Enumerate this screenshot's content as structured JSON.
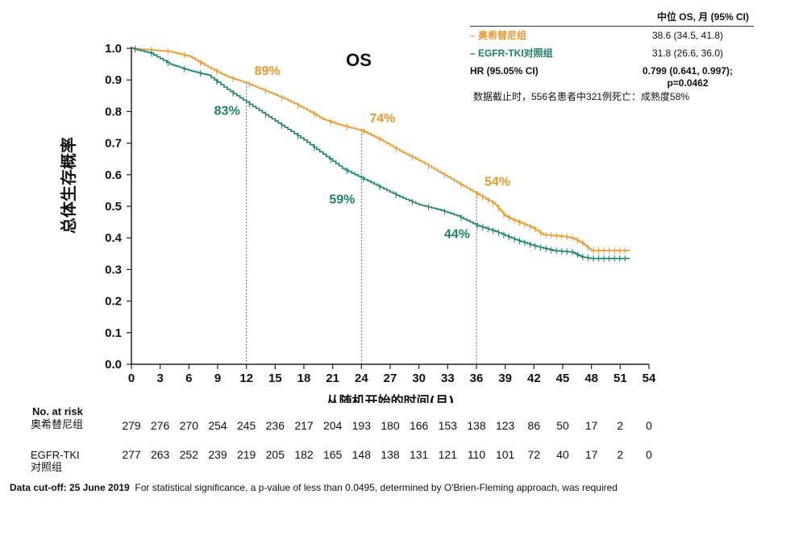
{
  "chart_data": {
    "type": "line",
    "subtype": "kaplan-meier",
    "title": "OS",
    "xlabel": "从随机开始的时间(月)",
    "ylabel": "总体生存概率",
    "xlim": [
      0,
      54
    ],
    "ylim": [
      0.0,
      1.0
    ],
    "xticks": [
      "0",
      "3",
      "6",
      "9",
      "12",
      "15",
      "18",
      "21",
      "24",
      "27",
      "30",
      "33",
      "36",
      "39",
      "42",
      "45",
      "48",
      "51",
      "54"
    ],
    "yticks": [
      "0.0",
      "0.1",
      "0.2",
      "0.3",
      "0.4",
      "0.5",
      "0.6",
      "0.7",
      "0.8",
      "0.9",
      "1.0"
    ],
    "reference_lines_x": [
      12,
      24,
      36
    ],
    "series": [
      {
        "name": "奥希替尼组",
        "color": "#e8992e",
        "points": [
          [
            0,
            1.0
          ],
          [
            2,
            0.995
          ],
          [
            4,
            0.99
          ],
          [
            6,
            0.975
          ],
          [
            8,
            0.94
          ],
          [
            10,
            0.91
          ],
          [
            12,
            0.89
          ],
          [
            14,
            0.865
          ],
          [
            16,
            0.84
          ],
          [
            18,
            0.81
          ],
          [
            20,
            0.775
          ],
          [
            22,
            0.755
          ],
          [
            24,
            0.74
          ],
          [
            26,
            0.71
          ],
          [
            28,
            0.675
          ],
          [
            30,
            0.645
          ],
          [
            32,
            0.61
          ],
          [
            34,
            0.575
          ],
          [
            36,
            0.54
          ],
          [
            38,
            0.505
          ],
          [
            39,
            0.47
          ],
          [
            40,
            0.455
          ],
          [
            42,
            0.43
          ],
          [
            43,
            0.41
          ],
          [
            45,
            0.405
          ],
          [
            46,
            0.4
          ],
          [
            47,
            0.385
          ],
          [
            48,
            0.36
          ],
          [
            52,
            0.36
          ]
        ],
        "labels": [
          {
            "x": 12,
            "text": "89%"
          },
          {
            "x": 24,
            "text": "74%"
          },
          {
            "x": 36,
            "text": "54%"
          }
        ]
      },
      {
        "name": "EGFR-TKI对照组",
        "color": "#1d7f6e",
        "points": [
          [
            0,
            1.0
          ],
          [
            2,
            0.985
          ],
          [
            4,
            0.95
          ],
          [
            6,
            0.93
          ],
          [
            8,
            0.915
          ],
          [
            10,
            0.87
          ],
          [
            12,
            0.83
          ],
          [
            14,
            0.79
          ],
          [
            16,
            0.75
          ],
          [
            18,
            0.71
          ],
          [
            20,
            0.665
          ],
          [
            22,
            0.62
          ],
          [
            24,
            0.59
          ],
          [
            26,
            0.56
          ],
          [
            28,
            0.53
          ],
          [
            30,
            0.505
          ],
          [
            32,
            0.49
          ],
          [
            34,
            0.47
          ],
          [
            36,
            0.44
          ],
          [
            38,
            0.42
          ],
          [
            40,
            0.395
          ],
          [
            42,
            0.375
          ],
          [
            44,
            0.36
          ],
          [
            46,
            0.355
          ],
          [
            47,
            0.34
          ],
          [
            48,
            0.335
          ],
          [
            52,
            0.335
          ]
        ],
        "labels": [
          {
            "x": 12,
            "text": "83%"
          },
          {
            "x": 24,
            "text": "59%"
          },
          {
            "x": 36,
            "text": "44%"
          }
        ]
      }
    ]
  },
  "legend": {
    "header": "中位 OS, 月 (95% CI)",
    "rows": [
      {
        "name": "– 奥希替尼组",
        "value": "38.6 (34.5, 41.8)",
        "color": "#e8992e"
      },
      {
        "name": "– EGFR-TKI对照组",
        "value": "31.8 (26.6, 36.0)",
        "color": "#1d7f6e"
      }
    ],
    "hr_label": "HR (95.05% CI)",
    "hr_value_line1": "0.799 (0.641, 0.997);",
    "hr_value_line2": "p=0.0462",
    "note": "数据截止时，556名患者中321例死亡：成熟度58%"
  },
  "risk_table": {
    "title": "No. at risk",
    "arm1_label": "奥希替尼组",
    "arm1_values": [
      "279",
      "276",
      "270",
      "254",
      "245",
      "236",
      "217",
      "204",
      "193",
      "180",
      "166",
      "153",
      "138",
      "123",
      "86",
      "50",
      "17",
      "2",
      "0"
    ],
    "arm2_label_line1": "EGFR-TKI",
    "arm2_label_line2": "对照组",
    "arm2_values": [
      "277",
      "263",
      "252",
      "239",
      "219",
      "205",
      "182",
      "165",
      "148",
      "138",
      "131",
      "121",
      "110",
      "101",
      "72",
      "40",
      "17",
      "2",
      "0"
    ]
  },
  "footnote": {
    "bold": "Data cut-off: 25 June 2019",
    "text": "For statistical significance, a p-value of less than 0.0495, determined by O'Brien-Fleming approach, was required"
  }
}
